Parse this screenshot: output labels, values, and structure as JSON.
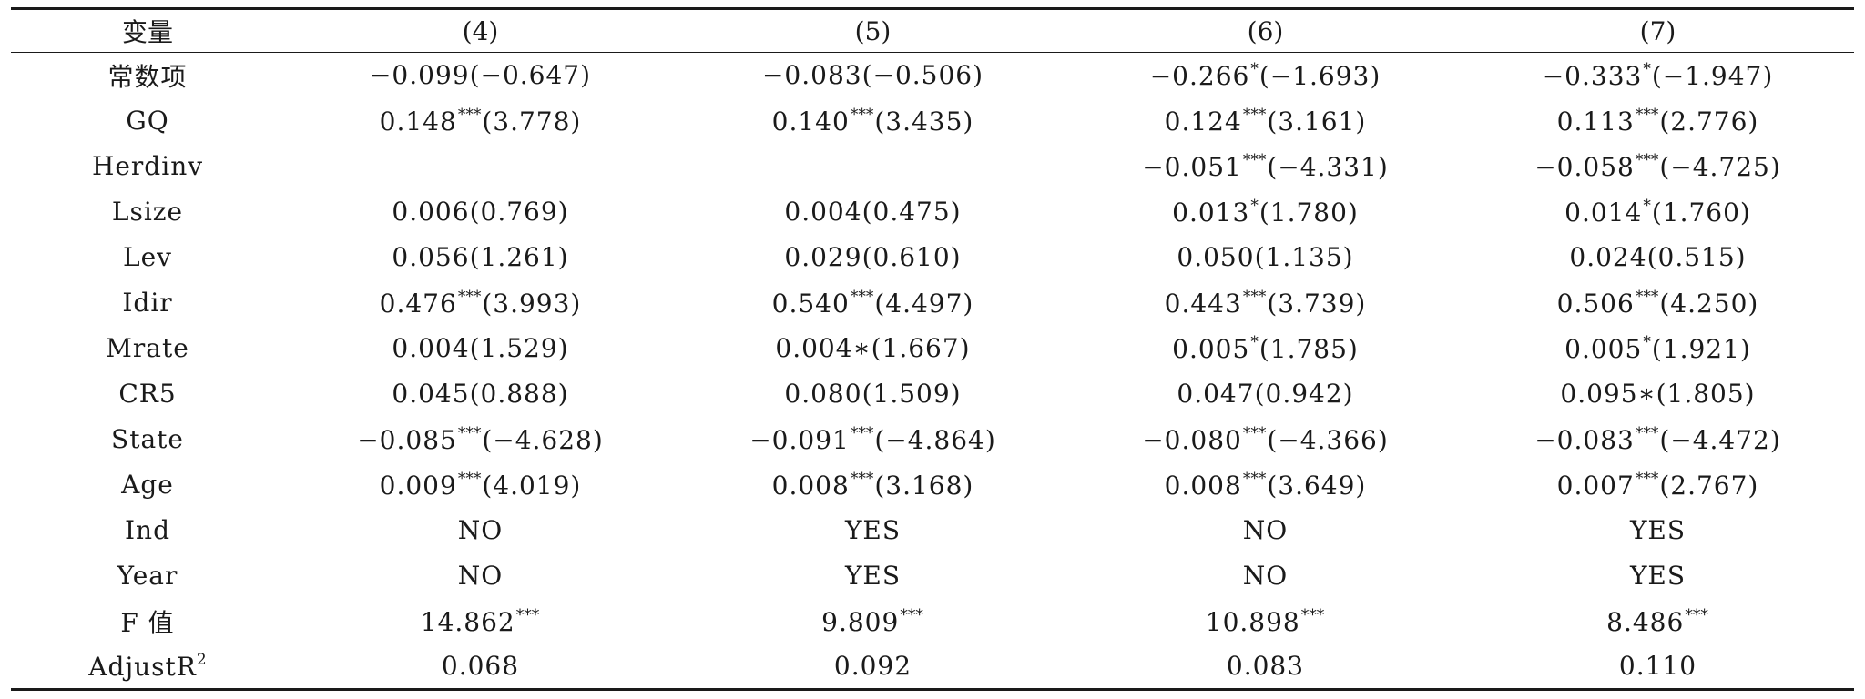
{
  "table": {
    "header": {
      "variable": "变量",
      "columns": [
        "(4)",
        "(5)",
        "(6)",
        "(7)"
      ]
    },
    "rows": [
      {
        "label": "常数项",
        "cells": [
          {
            "value": "−0.099",
            "sig": "",
            "t": "(−0.647)"
          },
          {
            "value": "−0.083",
            "sig": "",
            "t": "(−0.506)"
          },
          {
            "value": "−0.266",
            "sig": "*",
            "t": "(−1.693)"
          },
          {
            "value": "−0.333",
            "sig": "*",
            "t": "(−1.947)"
          }
        ]
      },
      {
        "label": "GQ",
        "cells": [
          {
            "value": "0.148",
            "sig": "***",
            "t": "(3.778)"
          },
          {
            "value": "0.140",
            "sig": "***",
            "t": "(3.435)"
          },
          {
            "value": "0.124",
            "sig": "***",
            "t": "(3.161)"
          },
          {
            "value": "0.113",
            "sig": "***",
            "t": "(2.776)"
          }
        ]
      },
      {
        "label": "Herdinv",
        "cells": [
          {
            "value": "",
            "sig": "",
            "t": ""
          },
          {
            "value": "",
            "sig": "",
            "t": ""
          },
          {
            "value": "−0.051",
            "sig": "***",
            "t": "(−4.331)"
          },
          {
            "value": "−0.058",
            "sig": "***",
            "t": "(−4.725)"
          }
        ]
      },
      {
        "label": "Lsize",
        "cells": [
          {
            "value": "0.006",
            "sig": "",
            "t": "(0.769)"
          },
          {
            "value": "0.004",
            "sig": "",
            "t": "(0.475)"
          },
          {
            "value": "0.013",
            "sig": "*",
            "t": "(1.780)"
          },
          {
            "value": "0.014",
            "sig": "*",
            "t": "(1.760)"
          }
        ]
      },
      {
        "label": "Lev",
        "cells": [
          {
            "value": "0.056",
            "sig": "",
            "t": "(1.261)"
          },
          {
            "value": "0.029",
            "sig": "",
            "t": "(0.610)"
          },
          {
            "value": "0.050",
            "sig": "",
            "t": "(1.135)"
          },
          {
            "value": "0.024",
            "sig": "",
            "t": "(0.515)"
          }
        ]
      },
      {
        "label": "Idir",
        "cells": [
          {
            "value": "0.476",
            "sig": "***",
            "t": "(3.993)"
          },
          {
            "value": "0.540",
            "sig": "***",
            "t": "(4.497)"
          },
          {
            "value": "0.443",
            "sig": "***",
            "t": "(3.739)"
          },
          {
            "value": "0.506",
            "sig": "***",
            "t": "(4.250)"
          }
        ]
      },
      {
        "label": "Mrate",
        "cells": [
          {
            "value": "0.004",
            "sig": "",
            "t": "(1.529)"
          },
          {
            "value": "0.004∗",
            "sig": "",
            "t": "(1.667)"
          },
          {
            "value": "0.005",
            "sig": "*",
            "t": "(1.785)"
          },
          {
            "value": "0.005",
            "sig": "*",
            "t": "(1.921)"
          }
        ]
      },
      {
        "label": "CR5",
        "cells": [
          {
            "value": "0.045",
            "sig": "",
            "t": "(0.888)"
          },
          {
            "value": "0.080",
            "sig": "",
            "t": "(1.509)"
          },
          {
            "value": "0.047",
            "sig": "",
            "t": "(0.942)"
          },
          {
            "value": "0.095∗",
            "sig": "",
            "t": "(1.805)"
          }
        ]
      },
      {
        "label": "State",
        "cells": [
          {
            "value": "−0.085",
            "sig": "***",
            "t": "(−4.628)"
          },
          {
            "value": "−0.091",
            "sig": "***",
            "t": "(−4.864)"
          },
          {
            "value": "−0.080",
            "sig": "***",
            "t": "(−4.366)"
          },
          {
            "value": "−0.083",
            "sig": "***",
            "t": "(−4.472)"
          }
        ]
      },
      {
        "label": "Age",
        "cells": [
          {
            "value": "0.009",
            "sig": "***",
            "t": "(4.019)"
          },
          {
            "value": "0.008",
            "sig": "***",
            "t": "(3.168)"
          },
          {
            "value": "0.008",
            "sig": "***",
            "t": "(3.649)"
          },
          {
            "value": "0.007",
            "sig": "***",
            "t": "(2.767)"
          }
        ]
      },
      {
        "label": "Ind",
        "cells": [
          {
            "value": "NO",
            "sig": "",
            "t": ""
          },
          {
            "value": "YES",
            "sig": "",
            "t": ""
          },
          {
            "value": "NO",
            "sig": "",
            "t": ""
          },
          {
            "value": "YES",
            "sig": "",
            "t": ""
          }
        ]
      },
      {
        "label": "Year",
        "cells": [
          {
            "value": "NO",
            "sig": "",
            "t": ""
          },
          {
            "value": "YES",
            "sig": "",
            "t": ""
          },
          {
            "value": "NO",
            "sig": "",
            "t": ""
          },
          {
            "value": "YES",
            "sig": "",
            "t": ""
          }
        ]
      },
      {
        "label": "F 值",
        "cells": [
          {
            "value": "14.862",
            "sig": "***",
            "t": ""
          },
          {
            "value": "9.809",
            "sig": "***",
            "t": ""
          },
          {
            "value": "10.898",
            "sig": "***",
            "t": ""
          },
          {
            "value": "8.486",
            "sig": "***",
            "t": ""
          }
        ]
      },
      {
        "label": "AdjustR",
        "label_sup": "2",
        "cells": [
          {
            "value": "0.068",
            "sig": "",
            "t": ""
          },
          {
            "value": "0.092",
            "sig": "",
            "t": ""
          },
          {
            "value": "0.083",
            "sig": "",
            "t": ""
          },
          {
            "value": "0.110",
            "sig": "",
            "t": ""
          }
        ]
      }
    ]
  }
}
